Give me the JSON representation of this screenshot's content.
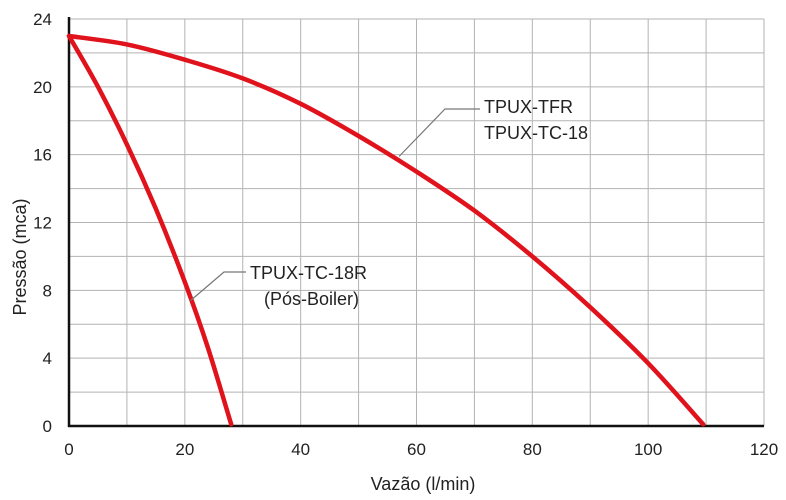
{
  "chart_data": {
    "type": "line",
    "title": "",
    "xlabel": "Vazão (l/min)",
    "ylabel": "Pressão (mca)",
    "xlim": [
      0,
      120
    ],
    "ylim": [
      0,
      24
    ],
    "xticks": [
      0,
      20,
      40,
      60,
      80,
      100,
      120
    ],
    "yticks": [
      0,
      4,
      8,
      12,
      16,
      20,
      24
    ],
    "grid": true,
    "line_color": "#e0121b",
    "series": [
      {
        "x": [
          0,
          10,
          20,
          30,
          40,
          50,
          60,
          70,
          80,
          90,
          100,
          109.5
        ],
        "values": [
          23.0,
          22.5,
          21.6,
          20.5,
          19.0,
          17.1,
          15.0,
          12.7,
          10.0,
          7.0,
          3.7,
          0.1
        ]
      },
      {
        "x": [
          0,
          5,
          10,
          15,
          20,
          24,
          28
        ],
        "values": [
          23.0,
          20.0,
          16.6,
          12.8,
          8.5,
          4.6,
          0.1
        ]
      }
    ],
    "annotations": [
      {
        "lines": [
          "TPUX-TFR",
          "TPUX-TC-18"
        ],
        "points_to": [
          57,
          15.9
        ]
      },
      {
        "lines": [
          "TPUX-TC-18R",
          "(Pós-Boiler)"
        ],
        "points_to": [
          21,
          7.4
        ]
      }
    ]
  }
}
